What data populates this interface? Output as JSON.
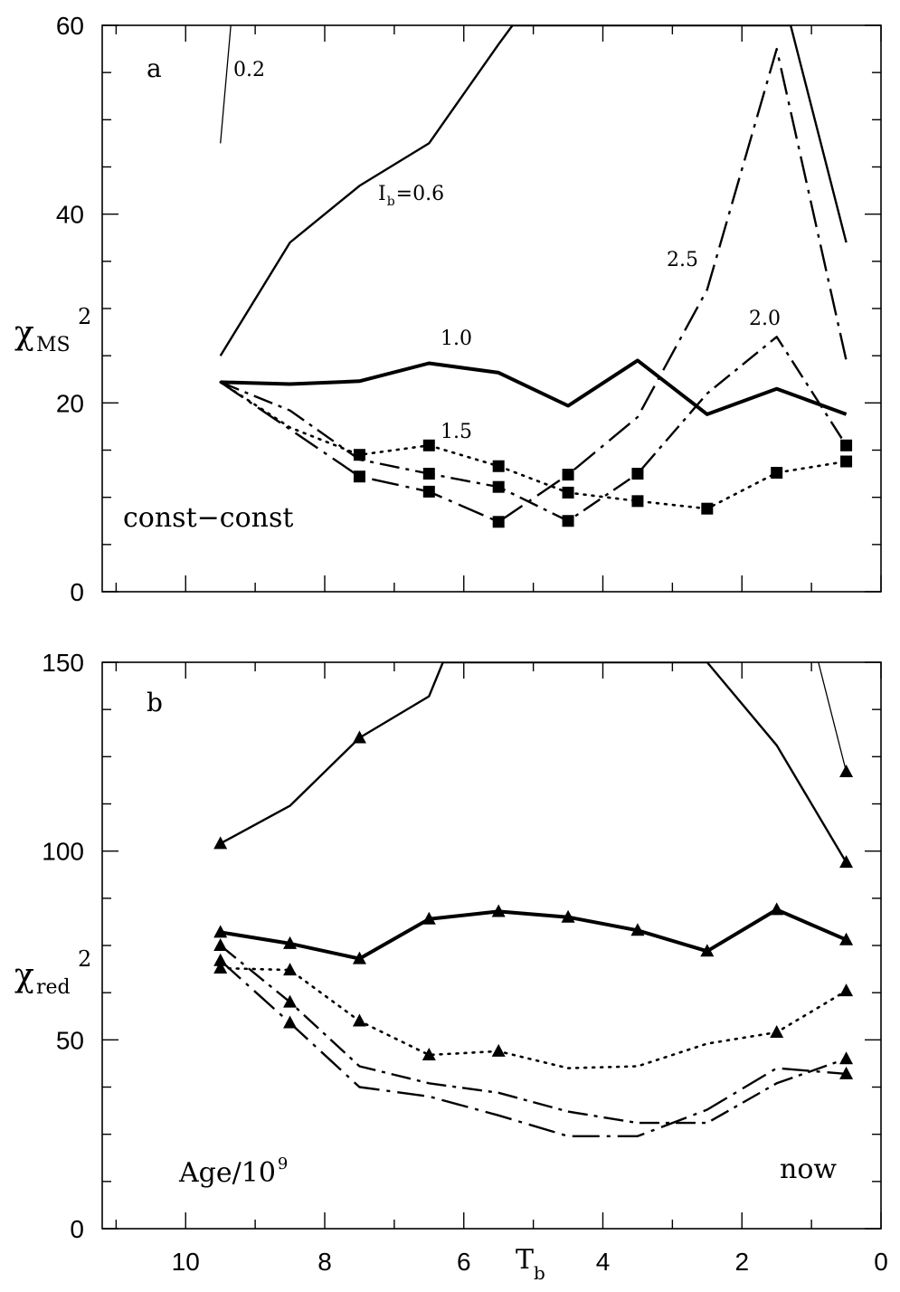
{
  "chart_data": [
    {
      "type": "line",
      "panel_label": "a",
      "ylabel_main": "χ",
      "ylabel_sub": "MS",
      "ylabel_sup": "2",
      "xlim": [
        0,
        11.2
      ],
      "ylim": [
        0,
        60
      ],
      "x_reversed": true,
      "yticks": [
        "0",
        "20",
        "40",
        "60"
      ],
      "annotations": [
        {
          "text": "const−const",
          "anchor": "lower-left"
        },
        {
          "text": "0.2",
          "anchor": "near line 0.2"
        },
        {
          "text": "I",
          "sub": "b",
          "rest": "=0.6",
          "anchor": "near line 0.6"
        },
        {
          "text": "1.0",
          "anchor": "near line 1.0"
        },
        {
          "text": "1.5",
          "anchor": "near line 1.5"
        },
        {
          "text": "2.0",
          "anchor": "near line 2.0"
        },
        {
          "text": "2.5",
          "anchor": "near line 2.5"
        }
      ],
      "series": [
        {
          "name": "0.2",
          "style": "thin",
          "x": [
            9.5,
            9.35
          ],
          "y": [
            47.5,
            60
          ]
        },
        {
          "name": "I_b=0.6",
          "style": "solid",
          "x": [
            9.5,
            8.5,
            7.5,
            6.5,
            5.5,
            5.3,
            1.3,
            0.5
          ],
          "y": [
            25,
            37,
            43,
            47.5,
            58,
            60,
            60,
            37
          ]
        },
        {
          "name": "1.0",
          "style": "thick",
          "x": [
            9.5,
            8.5,
            7.5,
            6.5,
            5.5,
            4.5,
            3.5,
            2.5,
            1.5,
            0.5
          ],
          "y": [
            22.2,
            22.0,
            22.3,
            24.2,
            23.2,
            19.7,
            24.5,
            18.8,
            21.5,
            18.8
          ]
        },
        {
          "name": "1.5",
          "style": "dotted",
          "markers": [
            7.5,
            6.5,
            5.5,
            4.5,
            3.5,
            2.5,
            1.5,
            0.5
          ],
          "x": [
            9.5,
            8.5,
            7.5,
            6.5,
            5.5,
            4.5,
            3.5,
            2.5,
            1.5,
            0.5
          ],
          "y": [
            22.2,
            17.4,
            14.5,
            15.5,
            13.3,
            10.5,
            9.6,
            8.8,
            12.6,
            13.8
          ]
        },
        {
          "name": "2.0",
          "style": "dashed",
          "markers": [
            6.5,
            5.5,
            4.5,
            3.5,
            0.5
          ],
          "x": [
            9.5,
            8.5,
            7.5,
            6.5,
            5.5,
            4.5,
            3.5,
            2.5,
            1.5,
            0.5
          ],
          "y": [
            22.2,
            19.2,
            14.0,
            12.5,
            11.1,
            7.5,
            12.5,
            21.0,
            27.0,
            15.5
          ]
        },
        {
          "name": "2.5",
          "style": "dash-dot",
          "markers": [
            7.5,
            6.5,
            5.5,
            4.5
          ],
          "x": [
            9.5,
            8.5,
            7.5,
            6.5,
            5.5,
            4.5,
            3.5,
            2.5,
            1.5,
            0.5
          ],
          "y": [
            22.2,
            17.2,
            12.2,
            10.6,
            7.4,
            12.4,
            18.5,
            32.0,
            57.5,
            24.5
          ]
        }
      ]
    },
    {
      "type": "line",
      "panel_label": "b",
      "ylabel_main": "χ",
      "ylabel_sub": "red",
      "ylabel_sup": "2",
      "xlabel_main": "T",
      "xlabel_sub": "b",
      "xlim": [
        0,
        11.2
      ],
      "ylim": [
        0,
        150
      ],
      "x_reversed": true,
      "xticks": [
        "10",
        "8",
        "6",
        "4",
        "2",
        "0"
      ],
      "yticks": [
        "0",
        "50",
        "100",
        "150"
      ],
      "annotations": [
        {
          "text": "Age/10",
          "sup": "9",
          "anchor": "lower-left"
        },
        {
          "text": "now",
          "anchor": "lower-right"
        }
      ],
      "series": [
        {
          "name": "0.2",
          "style": "thin",
          "markers": [
            0.5
          ],
          "x": [
            0.9,
            0.5
          ],
          "y": [
            150,
            121
          ]
        },
        {
          "name": "0.6",
          "style": "solid",
          "markers": [
            9.5,
            7.5,
            0.5
          ],
          "x": [
            9.5,
            8.5,
            7.5,
            6.5,
            6.3,
            2.5,
            1.5,
            0.5
          ],
          "y": [
            102,
            112,
            130,
            141,
            150,
            150,
            128,
            97
          ]
        },
        {
          "name": "1.0",
          "style": "thick",
          "markers": [
            9.5,
            8.5,
            7.5,
            6.5,
            5.5,
            4.5,
            3.5,
            2.5,
            1.5,
            0.5
          ],
          "x": [
            9.5,
            8.5,
            7.5,
            6.5,
            5.5,
            4.5,
            3.5,
            2.5,
            1.5,
            0.5
          ],
          "y": [
            78.5,
            75.5,
            71.5,
            82,
            84,
            82.5,
            79,
            73.5,
            84.5,
            76.5
          ]
        },
        {
          "name": "1.5",
          "style": "dotted",
          "markers": [
            9.5,
            8.5,
            7.5,
            6.5,
            5.5,
            1.5,
            0.5
          ],
          "x": [
            9.5,
            8.5,
            7.5,
            6.5,
            5.5,
            4.5,
            3.5,
            2.5,
            1.5,
            0.5
          ],
          "y": [
            69,
            68.5,
            55,
            46,
            47,
            42.5,
            43,
            49,
            52,
            63
          ]
        },
        {
          "name": "2.0",
          "style": "dashed",
          "markers": [
            9.5,
            8.5,
            0.5
          ],
          "x": [
            9.5,
            8.5,
            7.5,
            6.5,
            5.5,
            4.5,
            3.5,
            2.5,
            1.5,
            0.5
          ],
          "y": [
            75,
            60,
            43,
            38.5,
            36,
            31,
            28,
            28,
            38.5,
            45
          ]
        },
        {
          "name": "2.5",
          "style": "dash-dot",
          "markers": [
            9.5,
            8.5,
            0.5
          ],
          "x": [
            9.5,
            8.5,
            7.5,
            6.5,
            5.5,
            4.5,
            3.5,
            2.5,
            1.5,
            0.5
          ],
          "y": [
            71,
            54.5,
            37.5,
            35,
            30,
            24.5,
            24.5,
            31.5,
            42.5,
            41
          ]
        }
      ]
    }
  ]
}
